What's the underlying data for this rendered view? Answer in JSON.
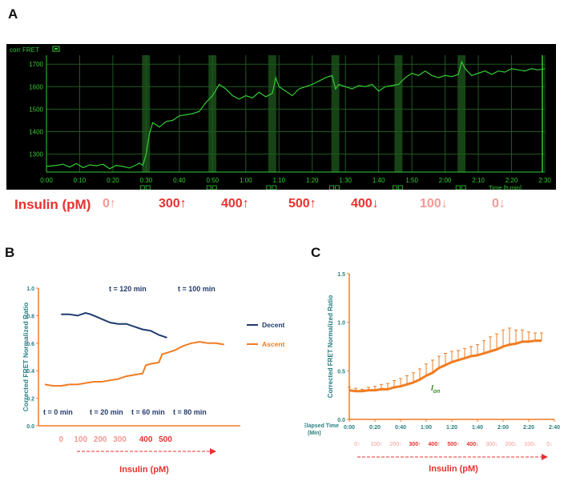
{
  "panels": {
    "a": "A",
    "b": "B",
    "c": "C"
  },
  "colors": {
    "screen_bg": "#000000",
    "trace": "#33cc33",
    "grid": "#1e5a1e",
    "red": "#e8312f",
    "pink": "#f29a94",
    "decent": "#1f3a6e",
    "ascent": "#f07c22",
    "axis_teal": "#2a7f7f",
    "label_blue": "#243b6b"
  },
  "chart_data": [
    {
      "id": "A",
      "type": "line",
      "ylabel": "corr FRET",
      "xlabel": "Time [h:min]",
      "ylim": [
        1220,
        1740
      ],
      "xlim": [
        0,
        150
      ],
      "x_tick_labels": [
        "0:00",
        "0:10",
        "0:20",
        "0:30",
        "0:40",
        "0:50",
        "1:00",
        "1:10",
        "1:20",
        "1:30",
        "1:40",
        "1:50",
        "2:00",
        "2:10",
        "2:20",
        "2:30"
      ],
      "y_tick_labels": [
        "1300",
        "1400",
        "1500",
        "1600",
        "1700"
      ],
      "y_ticks": [
        1300,
        1400,
        1500,
        1600,
        1700
      ],
      "shaded_bands_min": [
        29,
        49,
        67,
        86,
        105,
        124
      ],
      "series": [
        {
          "x": [
            0,
            3,
            5,
            7,
            9,
            11,
            13,
            15,
            17,
            19,
            21,
            23,
            25,
            27,
            28,
            29,
            30,
            31,
            32,
            34,
            36,
            38,
            40,
            42,
            44,
            46,
            48,
            50,
            52,
            54,
            56,
            58,
            60,
            62,
            64,
            66,
            68,
            69,
            70,
            72,
            74,
            76,
            78,
            80,
            82,
            84,
            86,
            87,
            88,
            90,
            92,
            94,
            96,
            98,
            100,
            102,
            104,
            106,
            108,
            110,
            112,
            114,
            116,
            118,
            120,
            122,
            124,
            125,
            126,
            128,
            130,
            132,
            134,
            136,
            138,
            140,
            142,
            144,
            146,
            148,
            150
          ],
          "y": [
            1245,
            1250,
            1255,
            1242,
            1258,
            1240,
            1252,
            1248,
            1255,
            1235,
            1250,
            1245,
            1238,
            1252,
            1260,
            1250,
            1300,
            1390,
            1440,
            1420,
            1445,
            1450,
            1470,
            1475,
            1480,
            1490,
            1530,
            1560,
            1610,
            1590,
            1560,
            1545,
            1560,
            1550,
            1575,
            1555,
            1570,
            1640,
            1600,
            1580,
            1560,
            1590,
            1600,
            1610,
            1625,
            1640,
            1650,
            1590,
            1610,
            1600,
            1590,
            1605,
            1600,
            1610,
            1580,
            1600,
            1605,
            1610,
            1640,
            1660,
            1650,
            1670,
            1650,
            1640,
            1650,
            1645,
            1655,
            1710,
            1680,
            1650,
            1660,
            1670,
            1655,
            1670,
            1665,
            1680,
            1675,
            1670,
            1680,
            1675,
            1680
          ]
        }
      ]
    },
    {
      "id": "B",
      "type": "line",
      "ylabel": "Corrected FRET Normalized Ratio",
      "xlabel": "Insulin (pM)",
      "ylim": [
        0.0,
        1.0
      ],
      "y_ticks": [
        0.0,
        0.2,
        0.4,
        0.6,
        0.8,
        1.0
      ],
      "y_tick_labels": [
        "0.0",
        "0.2",
        "0.4",
        "0.6",
        "0.8",
        "1.0"
      ],
      "x_tick_labels": [
        "0",
        "100",
        "200",
        "300",
        "400",
        "500"
      ],
      "x_tick_positions_min": [
        10,
        22,
        34,
        46,
        62,
        74
      ],
      "xlim": [
        0,
        120
      ],
      "legend": [
        "Decent",
        "Ascent"
      ],
      "legend_position": "right",
      "annotations_top": [
        "t = 120 min",
        "t = 100 min"
      ],
      "annotations_bottom": [
        "t = 0 min",
        "t = 20 min",
        "t = 60 min",
        "t = 80 min"
      ],
      "series": [
        {
          "name": "Decent",
          "x": [
            10,
            15,
            20,
            25,
            28,
            32,
            36,
            40,
            45,
            50,
            55,
            60,
            65,
            70,
            75
          ],
          "y": [
            0.81,
            0.81,
            0.8,
            0.82,
            0.81,
            0.79,
            0.77,
            0.75,
            0.74,
            0.74,
            0.72,
            0.7,
            0.69,
            0.66,
            0.64
          ]
        },
        {
          "name": "Ascent",
          "x": [
            0,
            5,
            10,
            15,
            20,
            25,
            30,
            35,
            40,
            45,
            50,
            55,
            60,
            62,
            65,
            70,
            72,
            75,
            80,
            85,
            90,
            95,
            100,
            105,
            110
          ],
          "y": [
            0.3,
            0.29,
            0.29,
            0.3,
            0.3,
            0.31,
            0.32,
            0.32,
            0.33,
            0.34,
            0.36,
            0.37,
            0.38,
            0.44,
            0.45,
            0.46,
            0.52,
            0.53,
            0.55,
            0.58,
            0.6,
            0.61,
            0.6,
            0.6,
            0.59
          ]
        }
      ]
    },
    {
      "id": "C",
      "type": "line",
      "ylabel": "Corrected FRET Normalized Ratio",
      "xlabel": "Insulin (pM)",
      "elapsed_label": "Elapsed Time",
      "elapsed_unit": "(Min)",
      "ylim": [
        0.0,
        1.5
      ],
      "y_ticks": [
        0.0,
        0.5,
        1.0,
        1.5
      ],
      "y_tick_labels": [
        "0.0",
        "0.5",
        "1.0",
        "1.5"
      ],
      "xlim": [
        0,
        160
      ],
      "x_ticks": [
        0,
        20,
        40,
        60,
        80,
        100,
        120,
        140,
        160
      ],
      "x_tick_labels": [
        "0:00",
        "0:20",
        "0:40",
        "1:00",
        "1:20",
        "1:40",
        "2:00",
        "2:20",
        "2:40"
      ],
      "annotation": "I",
      "annotation_sub": "on",
      "insulin_labels": [
        "0↑",
        "100↑",
        "200↑",
        "300↑",
        "400↑",
        "500↑",
        "400↓",
        "300↓",
        "200↓",
        "100↓",
        "0↓"
      ],
      "series": [
        {
          "name": "Ascent",
          "x": [
            0,
            5,
            10,
            15,
            20,
            25,
            30,
            35,
            40,
            45,
            50,
            55,
            60,
            65,
            70,
            75,
            80,
            85,
            90,
            95,
            100,
            105,
            110,
            115,
            120,
            125,
            130,
            135,
            140,
            145,
            150
          ],
          "y": [
            0.3,
            0.29,
            0.29,
            0.3,
            0.3,
            0.31,
            0.31,
            0.33,
            0.34,
            0.36,
            0.38,
            0.41,
            0.45,
            0.48,
            0.53,
            0.56,
            0.59,
            0.61,
            0.63,
            0.65,
            0.66,
            0.68,
            0.7,
            0.72,
            0.75,
            0.77,
            0.78,
            0.8,
            0.8,
            0.81,
            0.81
          ],
          "err": [
            0.03,
            0.03,
            0.02,
            0.03,
            0.04,
            0.05,
            0.06,
            0.07,
            0.08,
            0.09,
            0.1,
            0.11,
            0.12,
            0.13,
            0.12,
            0.12,
            0.11,
            0.1,
            0.1,
            0.1,
            0.11,
            0.13,
            0.15,
            0.16,
            0.17,
            0.17,
            0.14,
            0.12,
            0.1,
            0.08,
            0.08
          ]
        }
      ]
    }
  ],
  "insulin_row_a": {
    "title": "Insulin (pM)",
    "items": [
      {
        "label": "0↑",
        "tone": "pink"
      },
      {
        "label": "300↑",
        "tone": "red"
      },
      {
        "label": "400↑",
        "tone": "red"
      },
      {
        "label": "500↑",
        "tone": "red"
      },
      {
        "label": "400↓",
        "tone": "red"
      },
      {
        "label": "100↓",
        "tone": "pink"
      },
      {
        "label": "0↓",
        "tone": "pink"
      }
    ]
  }
}
